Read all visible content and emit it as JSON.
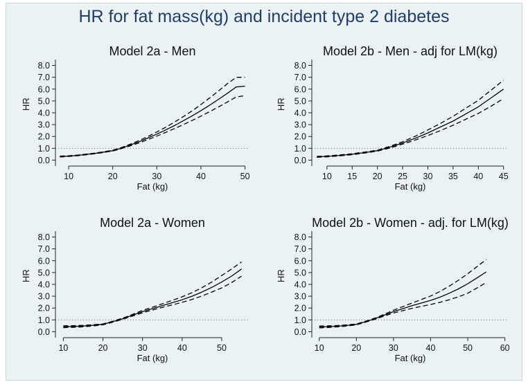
{
  "title": "HR for fat mass(kg) and incident type 2 diabetes",
  "chart_data": [
    {
      "type": "line",
      "title": "Model 2a - Men",
      "xlabel": "Fat (kg)",
      "ylabel": "HR",
      "xlim": [
        7,
        51
      ],
      "ylim": [
        -0.5,
        8.5
      ],
      "xticks": [
        10,
        20,
        30,
        40,
        50
      ],
      "yticks": [
        0.0,
        1.0,
        2.0,
        3.0,
        4.0,
        5.0,
        6.0,
        7.0,
        8.0
      ],
      "reference_line": 1.0,
      "x": [
        8,
        10,
        12,
        14,
        16,
        18,
        20,
        22,
        24,
        26,
        28,
        30,
        32,
        34,
        36,
        38,
        40,
        42,
        44,
        46,
        48,
        50
      ],
      "series": [
        {
          "name": "HR",
          "style": "solid",
          "values": [
            0.3,
            0.34,
            0.4,
            0.48,
            0.57,
            0.68,
            0.8,
            1.02,
            1.28,
            1.56,
            1.87,
            2.2,
            2.55,
            2.92,
            3.32,
            3.74,
            4.18,
            4.65,
            5.14,
            5.65,
            6.18,
            6.25
          ]
        },
        {
          "name": "95% CI upper",
          "style": "dashed",
          "values": [
            0.34,
            0.37,
            0.43,
            0.51,
            0.6,
            0.71,
            0.84,
            1.07,
            1.35,
            1.66,
            2.0,
            2.38,
            2.78,
            3.21,
            3.67,
            4.16,
            4.7,
            5.26,
            5.85,
            6.46,
            7.0,
            7.0
          ]
        },
        {
          "name": "95% CI lower",
          "style": "dashed",
          "values": [
            0.26,
            0.31,
            0.37,
            0.45,
            0.54,
            0.65,
            0.77,
            0.97,
            1.21,
            1.46,
            1.74,
            2.03,
            2.34,
            2.66,
            3.0,
            3.35,
            3.72,
            4.1,
            4.5,
            4.91,
            5.33,
            5.45
          ]
        }
      ]
    },
    {
      "type": "line",
      "title": "Model 2b - Men - adj for LM(kg)",
      "xlabel": "Fat (kg)",
      "ylabel": "HR",
      "xlim": [
        7,
        46
      ],
      "ylim": [
        -0.5,
        8.5
      ],
      "xticks": [
        10,
        15,
        20,
        25,
        30,
        35,
        40,
        45
      ],
      "yticks": [
        0.0,
        1.0,
        2.0,
        3.0,
        4.0,
        5.0,
        6.0,
        7.0,
        8.0
      ],
      "reference_line": 1.0,
      "x": [
        8,
        10,
        12.5,
        15,
        17.5,
        20,
        22.5,
        25,
        27.5,
        30,
        32.5,
        35,
        37.5,
        40,
        42.5,
        45
      ],
      "series": [
        {
          "name": "HR",
          "style": "solid",
          "values": [
            0.28,
            0.32,
            0.4,
            0.5,
            0.64,
            0.8,
            1.1,
            1.45,
            1.85,
            2.3,
            2.8,
            3.3,
            3.9,
            4.5,
            5.25,
            6.0
          ]
        },
        {
          "name": "95% CI upper",
          "style": "dashed",
          "values": [
            0.32,
            0.36,
            0.44,
            0.54,
            0.68,
            0.84,
            1.17,
            1.56,
            2.02,
            2.55,
            3.1,
            3.7,
            4.38,
            5.05,
            5.9,
            6.75
          ]
        },
        {
          "name": "95% CI lower",
          "style": "dashed",
          "values": [
            0.24,
            0.28,
            0.36,
            0.46,
            0.6,
            0.76,
            1.03,
            1.35,
            1.7,
            2.08,
            2.5,
            2.95,
            3.45,
            3.95,
            4.55,
            5.2
          ]
        }
      ]
    },
    {
      "type": "line",
      "title": "Model 2a - Women",
      "xlabel": "Fat (kg)",
      "ylabel": "HR",
      "xlim": [
        8,
        57
      ],
      "ylim": [
        -0.5,
        8.5
      ],
      "xticks": [
        10,
        20,
        30,
        40,
        50
      ],
      "yticks": [
        0.0,
        1.0,
        2.0,
        3.0,
        4.0,
        5.0,
        6.0,
        7.0,
        8.0
      ],
      "reference_line": 1.0,
      "x": [
        10,
        12.5,
        15,
        17.5,
        20,
        22.5,
        25,
        27.5,
        30,
        32.5,
        35,
        37.5,
        40,
        42.5,
        45,
        47.5,
        50,
        52.5,
        55
      ],
      "series": [
        {
          "name": "HR",
          "style": "solid",
          "values": [
            0.42,
            0.44,
            0.48,
            0.54,
            0.62,
            0.85,
            1.1,
            1.4,
            1.7,
            1.95,
            2.2,
            2.45,
            2.7,
            3.0,
            3.35,
            3.75,
            4.2,
            4.7,
            5.3
          ]
        },
        {
          "name": "95% CI upper",
          "style": "dashed",
          "values": [
            0.5,
            0.51,
            0.54,
            0.59,
            0.66,
            0.89,
            1.15,
            1.47,
            1.8,
            2.07,
            2.36,
            2.65,
            2.95,
            3.3,
            3.72,
            4.2,
            4.75,
            5.3,
            5.9
          ]
        },
        {
          "name": "95% CI lower",
          "style": "dashed",
          "values": [
            0.34,
            0.37,
            0.42,
            0.49,
            0.58,
            0.81,
            1.05,
            1.33,
            1.6,
            1.83,
            2.06,
            2.27,
            2.48,
            2.73,
            3.02,
            3.35,
            3.7,
            4.15,
            4.7
          ]
        }
      ]
    },
    {
      "type": "line",
      "title": "Model 2b - Women - adj. for LM(kg)",
      "xlabel": "Fat (kg)",
      "ylabel": "HR",
      "xlim": [
        8,
        61
      ],
      "ylim": [
        -0.5,
        8.5
      ],
      "xticks": [
        10,
        20,
        30,
        40,
        50,
        60
      ],
      "yticks": [
        0.0,
        1.0,
        2.0,
        3.0,
        4.0,
        5.0,
        6.0,
        7.0,
        8.0
      ],
      "reference_line": 1.0,
      "x": [
        10,
        12.5,
        15,
        17.5,
        20,
        22.5,
        25,
        27.5,
        30,
        32.5,
        35,
        37.5,
        40,
        42.5,
        45,
        47.5,
        50,
        52.5,
        55
      ],
      "series": [
        {
          "name": "HR",
          "style": "solid",
          "values": [
            0.4,
            0.43,
            0.47,
            0.53,
            0.62,
            0.85,
            1.1,
            1.4,
            1.7,
            1.95,
            2.2,
            2.42,
            2.65,
            2.92,
            3.25,
            3.62,
            4.05,
            4.55,
            5.05
          ]
        },
        {
          "name": "95% CI upper",
          "style": "dashed",
          "values": [
            0.48,
            0.5,
            0.53,
            0.58,
            0.66,
            0.89,
            1.15,
            1.47,
            1.82,
            2.12,
            2.42,
            2.72,
            3.02,
            3.4,
            3.85,
            4.35,
            4.9,
            5.5,
            6.1
          ]
        },
        {
          "name": "95% CI lower",
          "style": "dashed",
          "values": [
            0.32,
            0.36,
            0.41,
            0.48,
            0.58,
            0.81,
            1.05,
            1.33,
            1.58,
            1.78,
            1.98,
            2.14,
            2.3,
            2.48,
            2.7,
            2.95,
            3.25,
            3.7,
            4.15
          ]
        }
      ]
    }
  ]
}
